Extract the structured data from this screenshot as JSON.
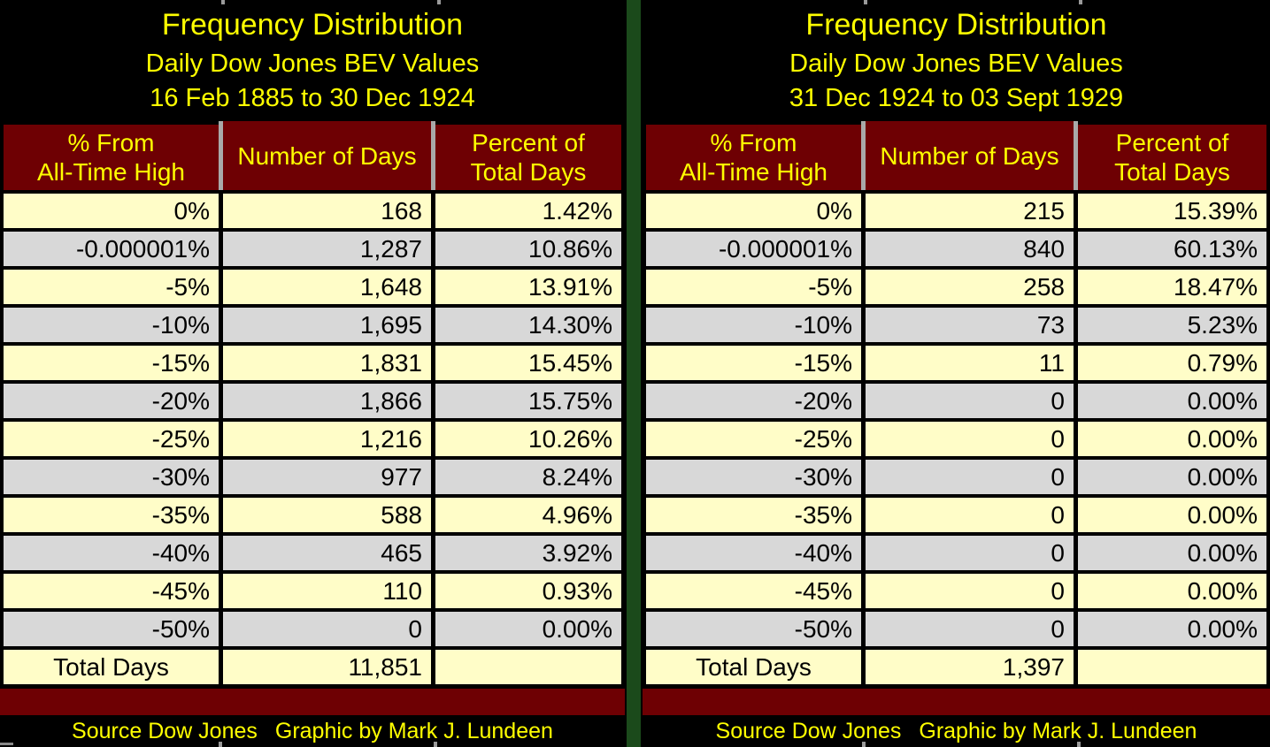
{
  "colors": {
    "background": "#000000",
    "title_text": "#FFFF00",
    "header_bg": "#6E0003",
    "header_text": "#FFFF00",
    "row_cream": "#FFFDC8",
    "row_gray": "#D8D8D8",
    "cell_text": "#000000",
    "band_maroon": "#6E0003",
    "divider_green": "#1B4A1B",
    "footer_text": "#FFFF00"
  },
  "panels": [
    {
      "title": "Frequency Distribution",
      "subtitle": "Daily Dow Jones BEV Values",
      "date_range": "16 Feb 1885 to 30 Dec 1924",
      "header": {
        "col1_line1": "% From",
        "col1_line2": "All-Time High",
        "col2": "Number of Days",
        "col3_line1": "Percent of",
        "col3_line2": "Total Days"
      },
      "rows": [
        {
          "label": "0%",
          "days": "168",
          "pct": "1.42%"
        },
        {
          "label": "-0.000001%",
          "days": "1,287",
          "pct": "10.86%"
        },
        {
          "label": "-5%",
          "days": "1,648",
          "pct": "13.91%"
        },
        {
          "label": "-10%",
          "days": "1,695",
          "pct": "14.30%"
        },
        {
          "label": "-15%",
          "days": "1,831",
          "pct": "15.45%"
        },
        {
          "label": "-20%",
          "days": "1,866",
          "pct": "15.75%"
        },
        {
          "label": "-25%",
          "days": "1,216",
          "pct": "10.26%"
        },
        {
          "label": "-30%",
          "days": "977",
          "pct": "8.24%"
        },
        {
          "label": "-35%",
          "days": "588",
          "pct": "4.96%"
        },
        {
          "label": "-40%",
          "days": "465",
          "pct": "3.92%"
        },
        {
          "label": "-45%",
          "days": "110",
          "pct": "0.93%"
        },
        {
          "label": "-50%",
          "days": "0",
          "pct": "0.00%"
        }
      ],
      "total_row": {
        "label": "Total Days",
        "days": "11,851",
        "pct": ""
      },
      "footer": {
        "source": "Source Dow Jones",
        "credit": "Graphic by Mark J. Lundeen"
      }
    },
    {
      "title": "Frequency Distribution",
      "subtitle": "Daily Dow Jones BEV Values",
      "date_range": "31 Dec 1924 to 03 Sept 1929",
      "header": {
        "col1_line1": "% From",
        "col1_line2": "All-Time High",
        "col2": "Number of Days",
        "col3_line1": "Percent of",
        "col3_line2": "Total Days"
      },
      "rows": [
        {
          "label": "0%",
          "days": "215",
          "pct": "15.39%"
        },
        {
          "label": "-0.000001%",
          "days": "840",
          "pct": "60.13%"
        },
        {
          "label": "-5%",
          "days": "258",
          "pct": "18.47%"
        },
        {
          "label": "-10%",
          "days": "73",
          "pct": "5.23%"
        },
        {
          "label": "-15%",
          "days": "11",
          "pct": "0.79%"
        },
        {
          "label": "-20%",
          "days": "0",
          "pct": "0.00%"
        },
        {
          "label": "-25%",
          "days": "0",
          "pct": "0.00%"
        },
        {
          "label": "-30%",
          "days": "0",
          "pct": "0.00%"
        },
        {
          "label": "-35%",
          "days": "0",
          "pct": "0.00%"
        },
        {
          "label": "-40%",
          "days": "0",
          "pct": "0.00%"
        },
        {
          "label": "-45%",
          "days": "0",
          "pct": "0.00%"
        },
        {
          "label": "-50%",
          "days": "0",
          "pct": "0.00%"
        }
      ],
      "total_row": {
        "label": "Total Days",
        "days": "1,397",
        "pct": ""
      },
      "footer": {
        "source": "Source Dow Jones",
        "credit": "Graphic by Mark J. Lundeen"
      }
    }
  ],
  "chart_data": [
    {
      "type": "table",
      "title": "Frequency Distribution",
      "subtitle": "Daily Dow Jones BEV Values",
      "period": "16 Feb 1885 to 30 Dec 1924",
      "columns": [
        "% From All-Time High",
        "Number of Days",
        "Percent of Total Days"
      ],
      "rows": [
        [
          "0%",
          168,
          1.42
        ],
        [
          "-0.000001%",
          1287,
          10.86
        ],
        [
          "-5%",
          1648,
          13.91
        ],
        [
          "-10%",
          1695,
          14.3
        ],
        [
          "-15%",
          1831,
          15.45
        ],
        [
          "-20%",
          1866,
          15.75
        ],
        [
          "-25%",
          1216,
          10.26
        ],
        [
          "-30%",
          977,
          8.24
        ],
        [
          "-35%",
          588,
          4.96
        ],
        [
          "-40%",
          465,
          3.92
        ],
        [
          "-45%",
          110,
          0.93
        ],
        [
          "-50%",
          0,
          0.0
        ]
      ],
      "total": [
        "Total Days",
        11851,
        null
      ]
    },
    {
      "type": "table",
      "title": "Frequency Distribution",
      "subtitle": "Daily Dow Jones BEV Values",
      "period": "31 Dec 1924 to 03 Sept 1929",
      "columns": [
        "% From All-Time High",
        "Number of Days",
        "Percent of Total Days"
      ],
      "rows": [
        [
          "0%",
          215,
          15.39
        ],
        [
          "-0.000001%",
          840,
          60.13
        ],
        [
          "-5%",
          258,
          18.47
        ],
        [
          "-10%",
          73,
          5.23
        ],
        [
          "-15%",
          11,
          0.79
        ],
        [
          "-20%",
          0,
          0.0
        ],
        [
          "-25%",
          0,
          0.0
        ],
        [
          "-30%",
          0,
          0.0
        ],
        [
          "-35%",
          0,
          0.0
        ],
        [
          "-40%",
          0,
          0.0
        ],
        [
          "-45%",
          0,
          0.0
        ],
        [
          "-50%",
          0,
          0.0
        ]
      ],
      "total": [
        "Total Days",
        1397,
        null
      ]
    }
  ]
}
